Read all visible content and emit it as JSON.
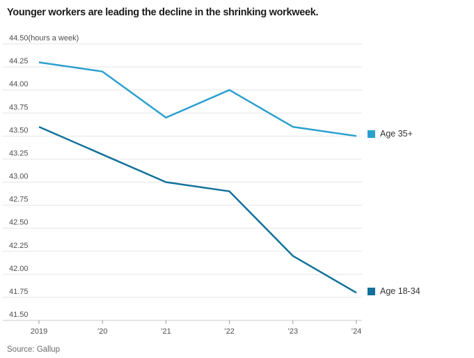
{
  "title": "Younger workers are leading the decline in the shrinking workweek.",
  "source": "Source: Gallup",
  "legend": {
    "items": [
      {
        "label": "Age 35+"
      },
      {
        "label": "Age 18-34"
      }
    ]
  },
  "colors": {
    "age_35_plus_line": "#2BA0CE",
    "age_18_34_line": "#11719A",
    "gridline": "#e5e5e5",
    "axis_line": "#c9c9c9",
    "tick_mark": "#999999",
    "axis_label_text": "#4d4d4d",
    "title_text": "#1b1b1b",
    "legend_text": "#333333",
    "source_text": "#6b6b6b"
  },
  "chart_data": {
    "type": "line",
    "title": "Younger workers are leading the decline in the shrinking workweek.",
    "unit_label": "(hours a week)",
    "ylabel": "hours a week",
    "xlabel": "",
    "x": [
      2019,
      2020,
      2021,
      2022,
      2023,
      2024
    ],
    "x_tick_labels": [
      "2019",
      "’20",
      "’21",
      "’22",
      "’23",
      "’24"
    ],
    "ylim": [
      41.5,
      44.5
    ],
    "y_tick_step": 0.25,
    "y_tick_labels": [
      "44.50",
      "44.25",
      "44.00",
      "43.75",
      "43.50",
      "43.25",
      "43.00",
      "42.75",
      "42.50",
      "42.25",
      "42.00",
      "41.75",
      "41.50"
    ],
    "grid": true,
    "legend_position": "end-of-line-right",
    "series": [
      {
        "name": "Age 35+",
        "color": "#2BA0CE",
        "values": [
          44.3,
          44.2,
          43.7,
          44.0,
          43.6,
          43.5
        ]
      },
      {
        "name": "Age 18-34",
        "color": "#11719A",
        "values": [
          43.6,
          43.3,
          43.0,
          42.9,
          42.2,
          41.8
        ]
      }
    ],
    "source": "Source: Gallup"
  }
}
